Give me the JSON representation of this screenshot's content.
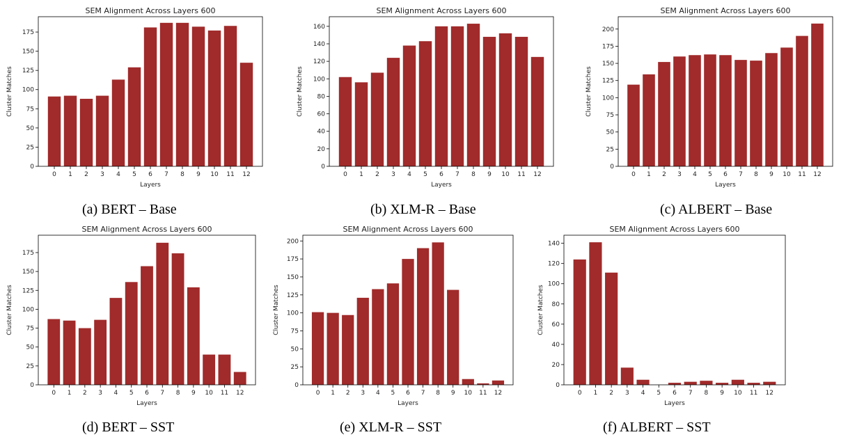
{
  "colors": {
    "bar": "#a12a2a",
    "axis": "#000000"
  },
  "chart_data": [
    {
      "type": "bar",
      "title": "SEM Alignment Across Layers 600",
      "xlabel": "Layers",
      "ylabel": "Cluster Matches",
      "categories": [
        "0",
        "1",
        "2",
        "3",
        "4",
        "5",
        "6",
        "7",
        "8",
        "9",
        "10",
        "11",
        "12"
      ],
      "values": [
        91,
        92,
        88,
        92,
        113,
        129,
        181,
        187,
        187,
        182,
        177,
        183,
        135
      ],
      "ylim": [
        0,
        195
      ],
      "yticks": [
        0,
        25,
        50,
        75,
        100,
        125,
        150,
        175
      ],
      "caption": "(a) BERT – Base"
    },
    {
      "type": "bar",
      "title": "SEM Alignment Across Layers 600",
      "xlabel": "Layers",
      "ylabel": "Cluster Matches",
      "categories": [
        "0",
        "1",
        "2",
        "3",
        "4",
        "5",
        "6",
        "7",
        "8",
        "9",
        "10",
        "11",
        "12"
      ],
      "values": [
        102,
        96,
        107,
        124,
        138,
        143,
        160,
        160,
        163,
        148,
        152,
        148,
        125
      ],
      "ylim": [
        0,
        171
      ],
      "yticks": [
        0,
        20,
        40,
        60,
        80,
        100,
        120,
        140,
        160
      ],
      "caption": "(b) XLM-R – Base"
    },
    {
      "type": "bar",
      "title": "SEM Alignment Across Layers 600",
      "xlabel": "Layers",
      "ylabel": "Cluster Matches",
      "categories": [
        "0",
        "1",
        "2",
        "3",
        "4",
        "5",
        "6",
        "7",
        "8",
        "9",
        "10",
        "11",
        "12"
      ],
      "values": [
        119,
        134,
        152,
        160,
        162,
        163,
        162,
        155,
        154,
        165,
        173,
        190,
        208
      ],
      "ylim": [
        0,
        218
      ],
      "yticks": [
        0,
        25,
        50,
        75,
        100,
        125,
        150,
        175,
        200
      ],
      "caption": "(c) ALBERT – Base"
    },
    {
      "type": "bar",
      "title": "SEM Alignment Across Layers 600",
      "xlabel": "Layers",
      "ylabel": "Cluster Matches",
      "categories": [
        "0",
        "1",
        "2",
        "3",
        "4",
        "5",
        "6",
        "7",
        "8",
        "9",
        "10",
        "11",
        "12"
      ],
      "values": [
        87,
        85,
        75,
        86,
        115,
        136,
        157,
        188,
        174,
        129,
        40,
        40,
        17
      ],
      "ylim": [
        0,
        198
      ],
      "yticks": [
        0,
        25,
        50,
        75,
        100,
        125,
        150,
        175
      ],
      "caption": "(d) BERT – SST"
    },
    {
      "type": "bar",
      "title": "SEM Alignment Across Layers 600",
      "xlabel": "Layers",
      "ylabel": "Cluster Matches",
      "categories": [
        "0",
        "1",
        "2",
        "3",
        "4",
        "5",
        "6",
        "7",
        "8",
        "9",
        "10",
        "11",
        "12"
      ],
      "values": [
        101,
        100,
        97,
        121,
        133,
        141,
        175,
        190,
        198,
        132,
        8,
        2,
        6
      ],
      "ylim": [
        0,
        208
      ],
      "yticks": [
        0,
        25,
        50,
        75,
        100,
        125,
        150,
        175,
        200
      ],
      "caption": "(e) XLM-R – SST"
    },
    {
      "type": "bar",
      "title": "SEM Alignment Across Layers 600",
      "xlabel": "Layers",
      "ylabel": "Cluster Matches",
      "categories": [
        "0",
        "1",
        "2",
        "3",
        "4",
        "5",
        "6",
        "7",
        "8",
        "9",
        "10",
        "11",
        "12"
      ],
      "values": [
        124,
        141,
        111,
        17,
        5,
        0,
        2,
        3,
        4,
        2,
        5,
        2,
        3
      ],
      "ylim": [
        0,
        148
      ],
      "yticks": [
        0,
        20,
        40,
        60,
        80,
        100,
        120,
        140
      ],
      "caption": "(f) ALBERT – SST"
    }
  ]
}
